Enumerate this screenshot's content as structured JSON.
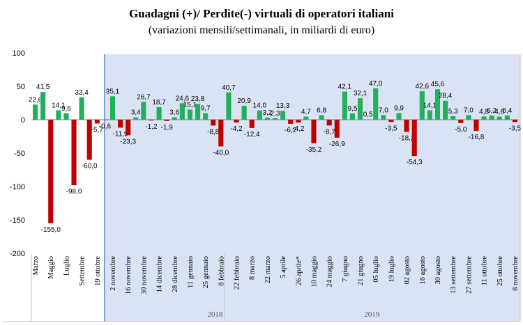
{
  "chart_data": {
    "type": "bar",
    "title": "Guadagni (+)/ Perdite(-) virtuali di operatori italiani",
    "subtitle": "(variazioni mensili/settimanali, in miliardi di euro)",
    "xlabel": "",
    "ylabel": "",
    "ylim": [
      -200,
      100
    ],
    "yticks": [
      100,
      50,
      0,
      -50,
      -100,
      -150,
      -200
    ],
    "grid": false,
    "legend": "none",
    "colors": {
      "positive": "#21b15a",
      "negative": "#c00000",
      "shaded_region": "#dae3f3"
    },
    "groups": [
      {
        "label": "2018",
        "start": 0,
        "end": 25
      },
      {
        "label": "2019",
        "start": 25,
        "end": 63
      }
    ],
    "shaded_from_index": 9,
    "values": [
      22.6,
      41.5,
      -155.0,
      14.1,
      9.6,
      -98.0,
      33.4,
      -60.0,
      -5.7,
      -0.6,
      35.1,
      -11.9,
      -23.3,
      3.4,
      26.7,
      -1.2,
      18.7,
      -1.9,
      3.6,
      24.6,
      15.1,
      23.8,
      9.7,
      -8.8,
      -40.0,
      40.7,
      -4.2,
      20.9,
      -12.4,
      14.0,
      3.2,
      2.3,
      13.3,
      -6.2,
      -4.2,
      4.7,
      -35.2,
      6.8,
      -8.7,
      -26.9,
      42.1,
      9.5,
      32.1,
      0.5,
      47.0,
      7.0,
      -3.5,
      9.9,
      -18.2,
      -54.3,
      42.6,
      14.1,
      45.6,
      28.4,
      5.3,
      -5.0,
      7.0,
      -16.8,
      4.8,
      6.2,
      4.6,
      6.4,
      -3.5
    ],
    "data_labels": [
      "22,6",
      "41,5",
      "-155,0",
      "14,1",
      "9,6",
      "-98,0",
      "33,4",
      "-60,0",
      "-5,7",
      "-0,6",
      "35,1",
      "-11,9",
      "-23,3",
      "3,4",
      "26,7",
      "-1,2",
      "18,7",
      "-1,9",
      "3,6",
      "24,6",
      "15,1",
      "23,8",
      "9,7",
      "-8,8",
      "-40,0",
      "40,7",
      "-4,2",
      "20,9",
      "-12,4",
      "14,0",
      "3,2",
      "2,3",
      "13,3",
      "-6,2",
      "-4,2",
      "4,7",
      "-35,2",
      "6,8",
      "-8,7",
      "-26,9",
      "42,1",
      "9,5",
      "32,1",
      "0,5",
      "47,0",
      "7,0",
      "-3,5",
      "9,9",
      "-18,2",
      "-54,3",
      "42,6",
      "14,1",
      "45,6",
      "28,4",
      "5,3",
      "-5,0",
      "7,0",
      "-16,8",
      "4,8",
      "6,2",
      "4,6",
      "6,4",
      "-3,5"
    ],
    "tick_labels": [
      {
        "i": 0,
        "text": "Marzo"
      },
      {
        "i": 2,
        "text": "Maggio"
      },
      {
        "i": 4,
        "text": "Luglio"
      },
      {
        "i": 6,
        "text": "Settembre"
      },
      {
        "i": 8,
        "text": "19 ottobre"
      },
      {
        "i": 10,
        "text": "2 novembre"
      },
      {
        "i": 12,
        "text": "16 novembre"
      },
      {
        "i": 14,
        "text": "30 novembre"
      },
      {
        "i": 16,
        "text": "14 dicembre"
      },
      {
        "i": 18,
        "text": "28 dicembre"
      },
      {
        "i": 20,
        "text": "11 gennaio"
      },
      {
        "i": 22,
        "text": "25 gennaio"
      },
      {
        "i": 24,
        "text": "8 febbraio"
      },
      {
        "i": 26,
        "text": "22 febbraio"
      },
      {
        "i": 28,
        "text": "8 marzo"
      },
      {
        "i": 30,
        "text": "22 marzo"
      },
      {
        "i": 32,
        "text": "5 aprile"
      },
      {
        "i": 34,
        "text": "26 aprile*"
      },
      {
        "i": 36,
        "text": "10 maggio"
      },
      {
        "i": 38,
        "text": "24 maggio"
      },
      {
        "i": 40,
        "text": "7 giugno"
      },
      {
        "i": 42,
        "text": "21 giugno"
      },
      {
        "i": 44,
        "text": "05 luglio"
      },
      {
        "i": 46,
        "text": "19 luglio"
      },
      {
        "i": 48,
        "text": "02 agosto"
      },
      {
        "i": 50,
        "text": "16 agosto"
      },
      {
        "i": 52,
        "text": "30 agosto"
      },
      {
        "i": 54,
        "text": "13 settembre"
      },
      {
        "i": 56,
        "text": "27 settembre"
      },
      {
        "i": 58,
        "text": "11 ottobre"
      },
      {
        "i": 60,
        "text": "25 ottobre"
      },
      {
        "i": 62,
        "text": "8 novembre"
      }
    ]
  }
}
